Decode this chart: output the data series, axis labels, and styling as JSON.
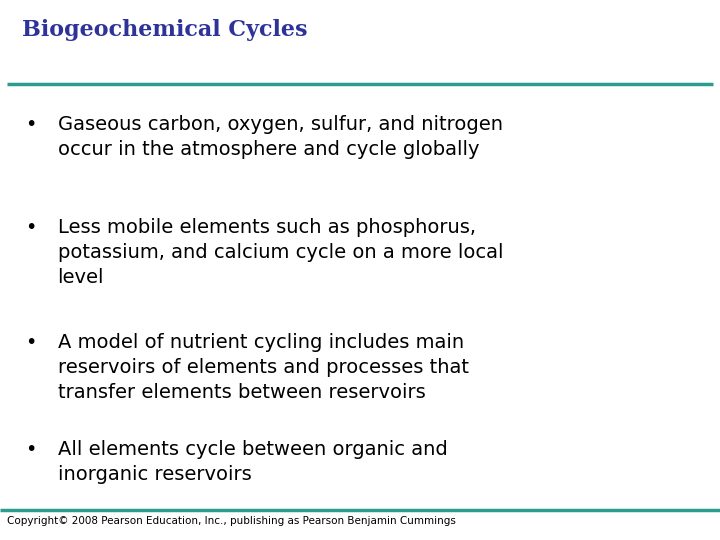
{
  "title": "Biogeochemical Cycles",
  "title_color": "#2E3399",
  "title_fontsize": 16,
  "line_color": "#2A9D8F",
  "background_color": "#FFFFFF",
  "bullet_color": "#000000",
  "bullet_fontsize": 14,
  "bullet_dot": "•",
  "bullets": [
    "Gaseous carbon, oxygen, sulfur, and nitrogen\noccur in the atmosphere and cycle globally",
    "Less mobile elements such as phosphorus,\npotassium, and calcium cycle on a more local\nlevel",
    "A model of nutrient cycling includes main\nreservoirs of elements and processes that\ntransfer elements between reservoirs",
    "All elements cycle between organic and\ninorganic reservoirs"
  ],
  "copyright": "Copyright© 2008 Pearson Education, Inc., publishing as Pearson Benjamin Cummings",
  "copyright_fontsize": 7.5,
  "copyright_color": "#000000",
  "figsize": [
    7.2,
    5.4
  ],
  "dpi": 100
}
